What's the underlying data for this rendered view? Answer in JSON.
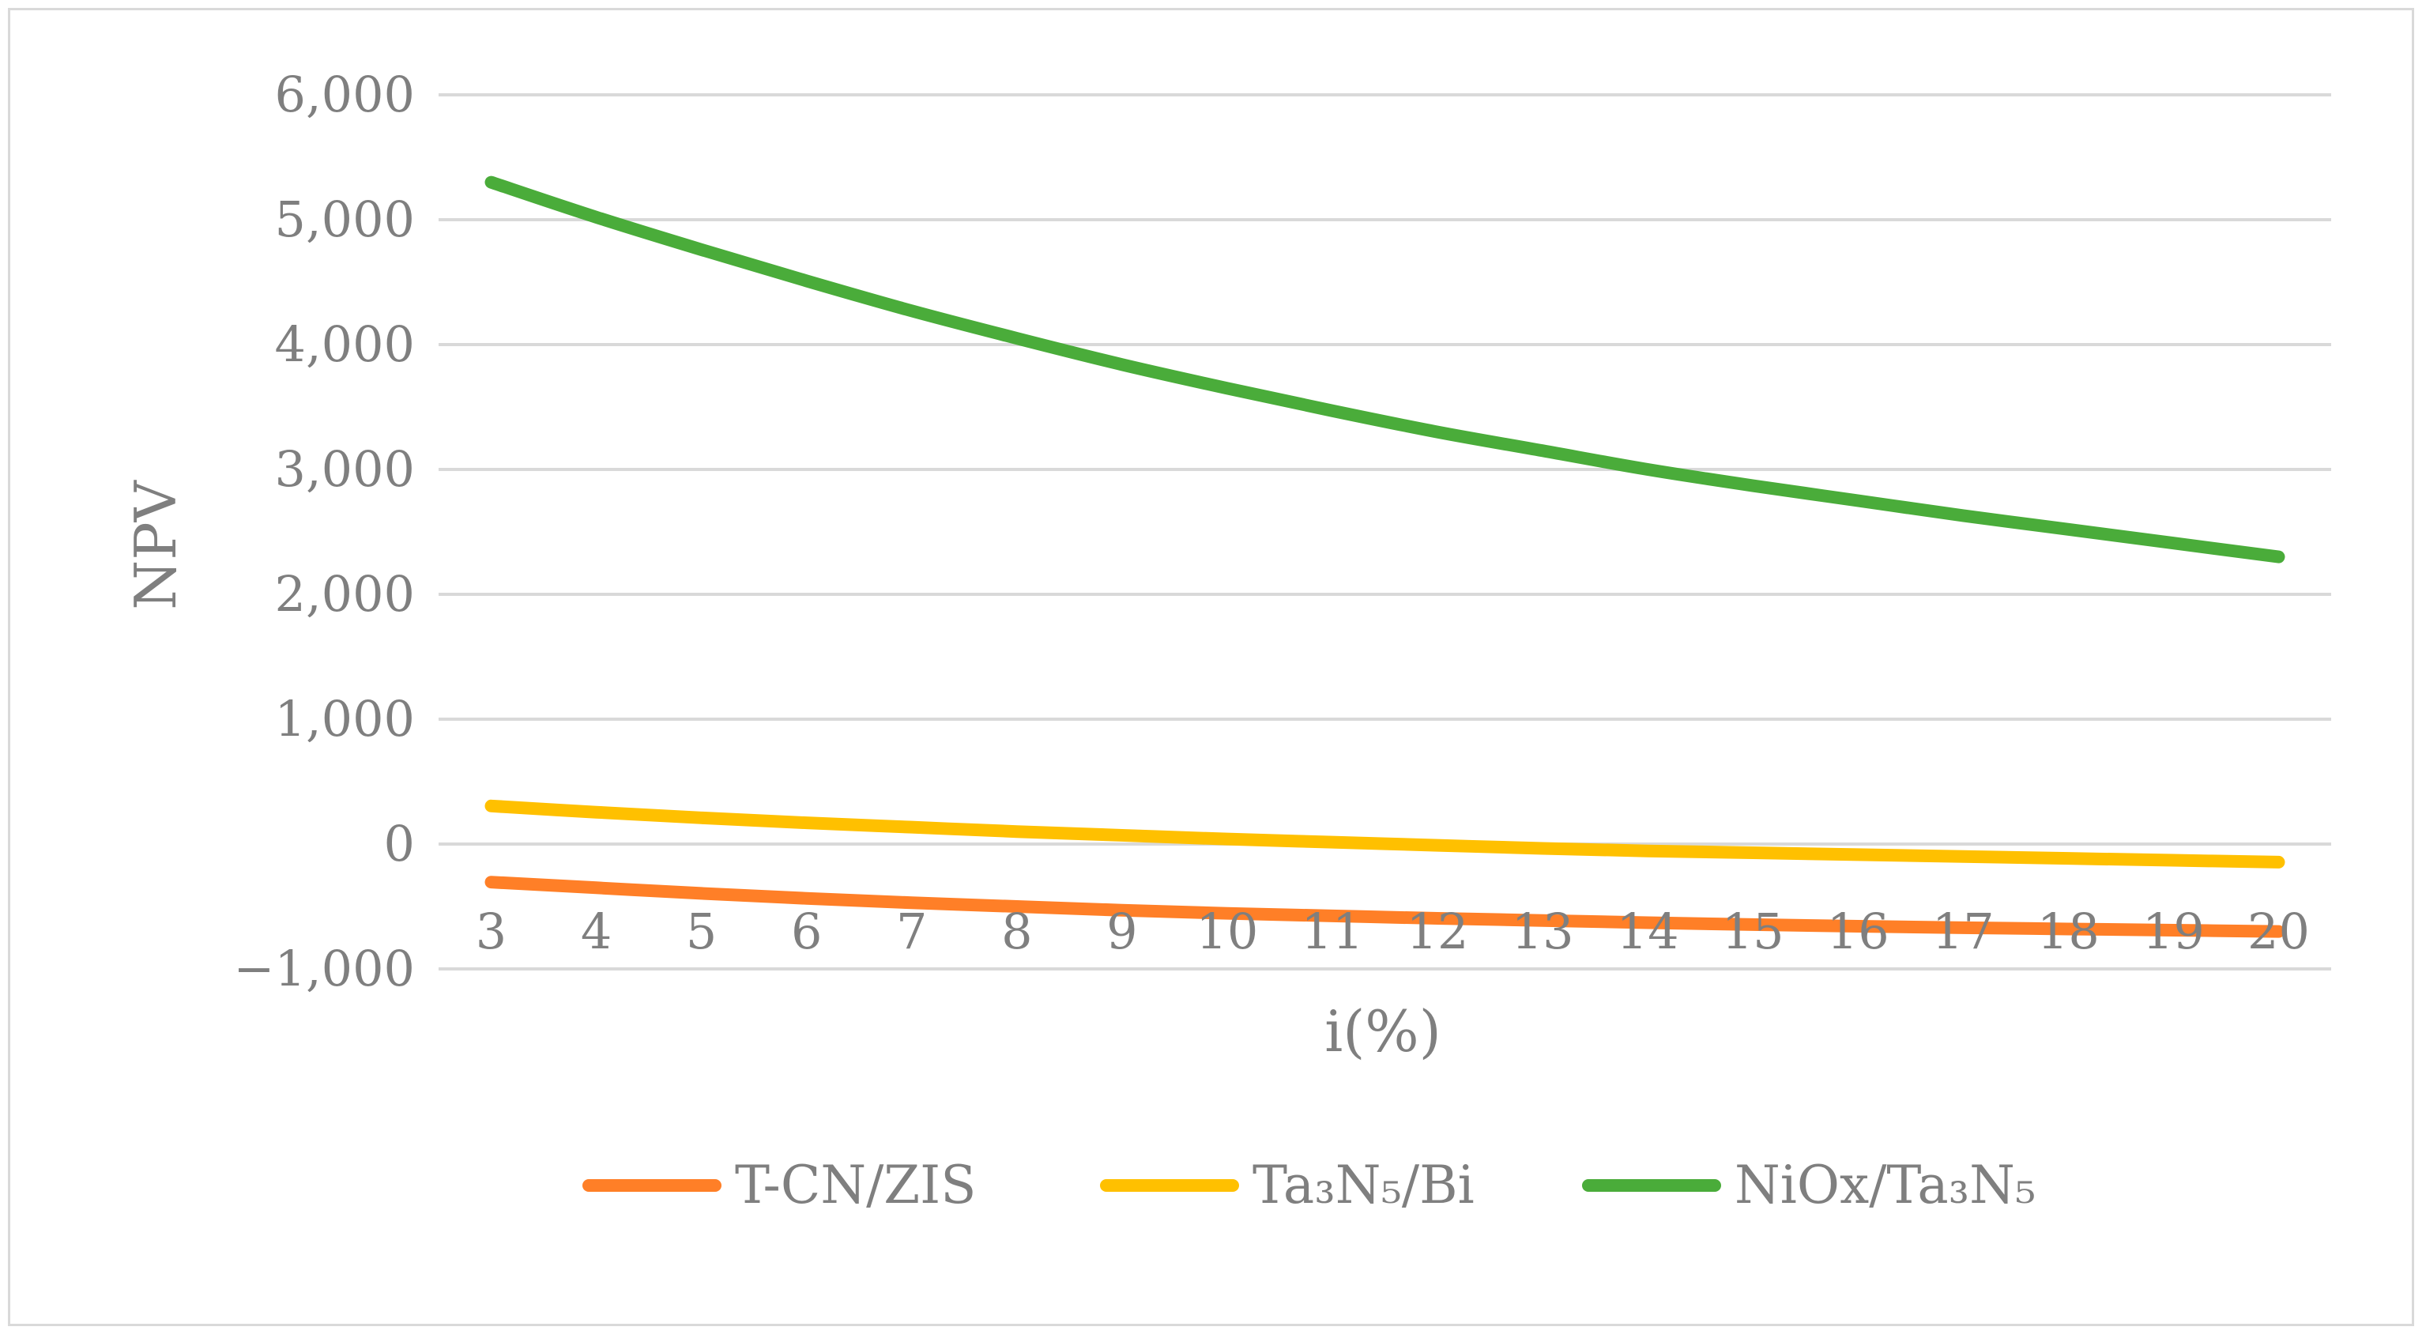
{
  "chart_data": {
    "type": "line",
    "title": "",
    "xlabel": "i(%)",
    "ylabel": "NPV",
    "x": [
      3,
      4,
      5,
      6,
      7,
      8,
      9,
      10,
      11,
      12,
      13,
      14,
      15,
      16,
      17,
      18,
      19,
      20
    ],
    "ylim": [
      -1000,
      6000
    ],
    "yticks": [
      -1000,
      0,
      1000,
      2000,
      3000,
      4000,
      5000,
      6000
    ],
    "ytick_labels": [
      "−1,000",
      "0",
      "1,000",
      "2,000",
      "3,000",
      "4,000",
      "5,000",
      "6,000"
    ],
    "grid": "horizontal",
    "legend_position": "bottom",
    "series": [
      {
        "name": "T-CN/ZIS",
        "color": "#ff7f27",
        "values": [
          -305,
          -350,
          -395,
          -435,
          -470,
          -500,
          -530,
          -555,
          -575,
          -595,
          -612,
          -630,
          -645,
          -658,
          -670,
          -680,
          -690,
          -700
        ]
      },
      {
        "name": "Ta₃N₅/Bi",
        "color": "#ffc000",
        "values": [
          305,
          255,
          210,
          170,
          135,
          100,
          70,
          40,
          15,
          -10,
          -35,
          -55,
          -70,
          -85,
          -100,
          -115,
          -130,
          -145
        ]
      },
      {
        "name": "NiOx/Ta₃N₅",
        "color": "#4aac3a",
        "values": [
          5300,
          5020,
          4760,
          4510,
          4270,
          4050,
          3840,
          3650,
          3470,
          3300,
          3150,
          3000,
          2870,
          2750,
          2630,
          2520,
          2410,
          2300
        ]
      }
    ]
  }
}
